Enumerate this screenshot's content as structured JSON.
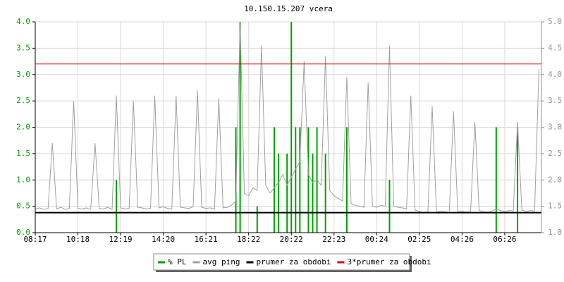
{
  "chart_data": {
    "type": "line",
    "title": "10.150.15.207 vcera",
    "categories": [
      "08:17",
      null,
      null,
      null,
      null,
      null,
      null,
      null,
      null,
      null,
      "10:18",
      null,
      null,
      null,
      null,
      null,
      null,
      null,
      null,
      null,
      "12:19",
      null,
      null,
      null,
      null,
      null,
      null,
      null,
      null,
      null,
      "14:20",
      null,
      null,
      null,
      null,
      null,
      null,
      null,
      null,
      null,
      "16:21",
      null,
      null,
      null,
      null,
      null,
      null,
      null,
      null,
      null,
      "18:22",
      null,
      null,
      null,
      null,
      null,
      null,
      null,
      null,
      null,
      "20:22",
      null,
      null,
      null,
      null,
      null,
      null,
      null,
      null,
      null,
      "22:23",
      null,
      null,
      null,
      null,
      null,
      null,
      null,
      null,
      null,
      "00:24",
      null,
      null,
      null,
      null,
      null,
      null,
      null,
      null,
      null,
      "02:25",
      null,
      null,
      null,
      null,
      null,
      null,
      null,
      null,
      null,
      "04:26",
      null,
      null,
      null,
      null,
      null,
      null,
      null,
      null,
      null,
      "06:26",
      null,
      null,
      null,
      null,
      null,
      null,
      null,
      null
    ],
    "series": [
      {
        "name": "% PL",
        "color": "#00a000",
        "style": "bars",
        "values": [
          0,
          0,
          0,
          0,
          0,
          0,
          0,
          0,
          0,
          0,
          0,
          0,
          0,
          0,
          0,
          0,
          0,
          0,
          0,
          1.0,
          0,
          0,
          0,
          0,
          0,
          0,
          0,
          0,
          0,
          0,
          0,
          0,
          0,
          0,
          0,
          0,
          0,
          0,
          0,
          0,
          0,
          0,
          0,
          0,
          0,
          0,
          0,
          2.0,
          4.0,
          0,
          0,
          0,
          0.5,
          0,
          0,
          0,
          2.0,
          1.5,
          0,
          1.5,
          4.0,
          2.0,
          2.0,
          0,
          2.0,
          1.5,
          2.0,
          0,
          1.5,
          0,
          0,
          0,
          0,
          2.0,
          0,
          0,
          0,
          0,
          0,
          0,
          0,
          0,
          0,
          1.0,
          0,
          0,
          0,
          0,
          0,
          0,
          0,
          0,
          0,
          0,
          0,
          0,
          0,
          0,
          0,
          0,
          0,
          0,
          0,
          0,
          0,
          0,
          0,
          0,
          2.0,
          0,
          0,
          0,
          0,
          2.0,
          0,
          0,
          0,
          0,
          0
        ]
      },
      {
        "name": "avg ping",
        "color": "#a0a0a0",
        "axis": "y2",
        "values": [
          1.45,
          1.47,
          1.44,
          1.46,
          2.7,
          1.45,
          1.48,
          1.44,
          1.46,
          3.5,
          1.46,
          1.45,
          1.47,
          1.44,
          2.7,
          1.46,
          1.45,
          1.48,
          1.44,
          3.6,
          1.47,
          1.45,
          1.46,
          3.5,
          1.48,
          1.47,
          1.45,
          1.46,
          3.6,
          1.47,
          1.49,
          1.46,
          1.45,
          3.6,
          1.48,
          1.47,
          1.46,
          1.49,
          3.7,
          1.48,
          1.46,
          1.47,
          1.45,
          3.55,
          1.47,
          1.48,
          1.52,
          1.6,
          5.0,
          1.75,
          1.7,
          1.85,
          1.8,
          4.55,
          1.9,
          1.75,
          1.85,
          1.95,
          2.1,
          1.9,
          2.05,
          2.2,
          2.35,
          4.25,
          2.1,
          1.95,
          2.0,
          1.9,
          4.35,
          1.8,
          1.7,
          1.65,
          1.6,
          3.95,
          1.55,
          1.52,
          1.5,
          1.48,
          3.85,
          1.5,
          1.48,
          1.52,
          1.5,
          4.55,
          1.5,
          1.48,
          1.47,
          1.45,
          3.6,
          1.43,
          1.4,
          1.38,
          1.4,
          3.4,
          1.39,
          1.41,
          1.4,
          1.38,
          3.3,
          1.4,
          1.41,
          1.39,
          1.4,
          3.1,
          1.42,
          1.4,
          1.39,
          1.41,
          1.45,
          1.42,
          1.4,
          1.42,
          1.41,
          3.1,
          1.43,
          1.4,
          1.42,
          1.41,
          4.1
        ]
      }
    ],
    "lines": [
      {
        "name": "prumer za obdobi",
        "color": "#000000",
        "axis": "y2",
        "value": 1.38
      },
      {
        "name": "3*prumer za obdobi",
        "color": "#e00000",
        "axis": "y2",
        "value": 4.2
      }
    ],
    "ylim": [
      0,
      4
    ],
    "yticks": [
      {
        "value": 0,
        "label": "0.0"
      },
      0.5,
      {
        "value": 1,
        "label": "1.0"
      },
      1.5,
      {
        "value": 2,
        "label": "2.0"
      },
      2.5,
      {
        "value": 3,
        "label": "3.0"
      },
      3.5,
      {
        "value": 4,
        "label": "4.0"
      }
    ],
    "y2lim": [
      1,
      5
    ],
    "y2ticks": [
      {
        "value": 1,
        "label": "1.0"
      },
      1.5,
      {
        "value": 2,
        "label": "2.0"
      },
      2.5,
      {
        "value": 3,
        "label": "3.0"
      },
      3.5,
      {
        "value": 4,
        "label": "4.0"
      },
      4.5,
      {
        "value": 5,
        "label": "5.0"
      }
    ],
    "ytick_color": "#00a000",
    "y2tick_color": "#909090",
    "grid": true,
    "legend": "bottom"
  }
}
